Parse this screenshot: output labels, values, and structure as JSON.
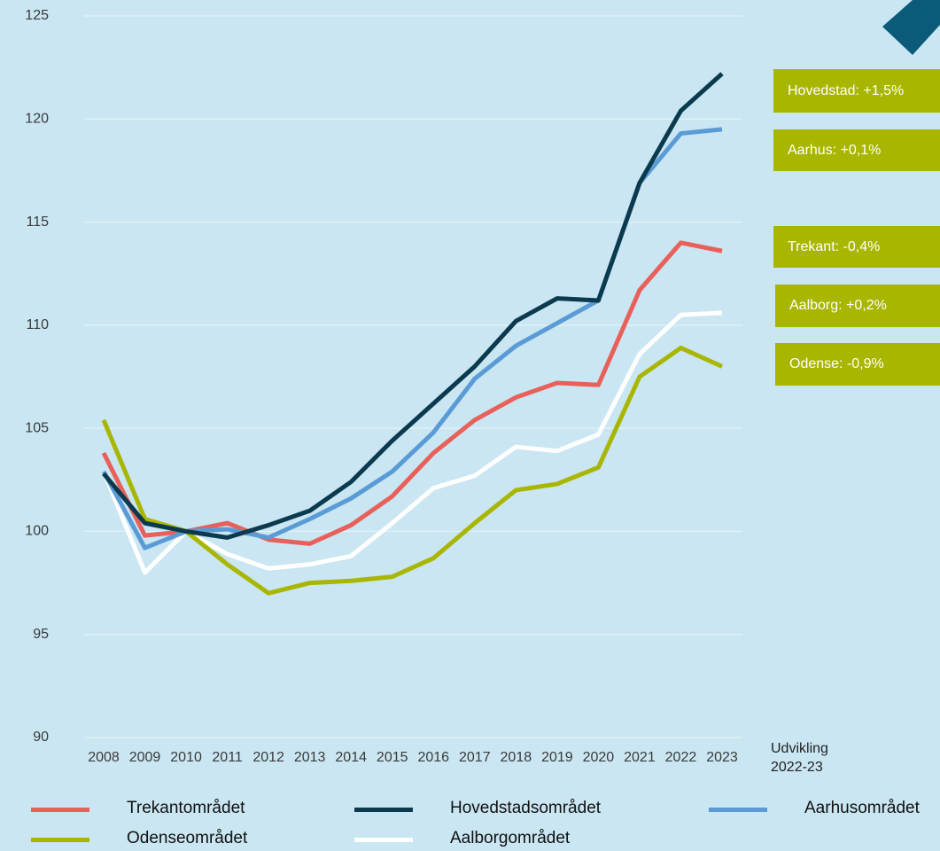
{
  "chart_data": {
    "type": "line",
    "categories": [
      "2008",
      "2009",
      "2010",
      "2011",
      "2012",
      "2013",
      "2014",
      "2015",
      "2016",
      "2017",
      "2018",
      "2019",
      "2020",
      "2021",
      "2022",
      "2023"
    ],
    "series": [
      {
        "name": "Trekantområdet",
        "color": "#e8605a",
        "values": [
          103.8,
          99.8,
          100,
          100.4,
          99.6,
          99.4,
          100.3,
          101.7,
          103.8,
          105.4,
          106.5,
          107.2,
          107.1,
          111.7,
          114.0,
          113.6
        ]
      },
      {
        "name": "Hovedstadsområdet",
        "color": "#0b3a4f",
        "values": [
          102.8,
          100.4,
          100,
          99.7,
          100.3,
          101.0,
          102.4,
          104.4,
          106.2,
          108.0,
          110.2,
          111.3,
          111.2,
          116.9,
          120.4,
          122.2
        ]
      },
      {
        "name": "Aarhusområdet",
        "color": "#5b9bd5",
        "values": [
          102.9,
          99.2,
          100,
          100.1,
          99.7,
          100.6,
          101.6,
          102.9,
          104.8,
          107.4,
          109.0,
          110.1,
          111.2,
          116.9,
          119.3,
          119.5
        ]
      },
      {
        "name": "Odenseområdet",
        "color": "#a9b600",
        "values": [
          105.4,
          100.6,
          100,
          98.4,
          97.0,
          97.5,
          97.6,
          97.8,
          98.7,
          100.4,
          102.0,
          102.3,
          103.1,
          107.5,
          108.9,
          108.0
        ]
      },
      {
        "name": "Aalborgområdet",
        "color": "#ffffff",
        "values": [
          102.9,
          98.0,
          100,
          98.9,
          98.2,
          98.4,
          98.8,
          100.4,
          102.1,
          102.7,
          104.1,
          103.9,
          104.7,
          108.6,
          110.5,
          110.6
        ]
      }
    ],
    "ylim": [
      90,
      125
    ],
    "yticks": [
      90,
      95,
      100,
      105,
      110,
      115,
      120,
      125
    ],
    "grid": true,
    "annotation_title": "Udvikling 2022-23",
    "annotations": [
      "Hovedstad: +1,5%",
      "Aarhus: +0,1%",
      "Trekant: -0,4%",
      "Aalborg: +0,2%",
      "Odense: -0,9%"
    ],
    "annotation_color": "#a9b600"
  }
}
